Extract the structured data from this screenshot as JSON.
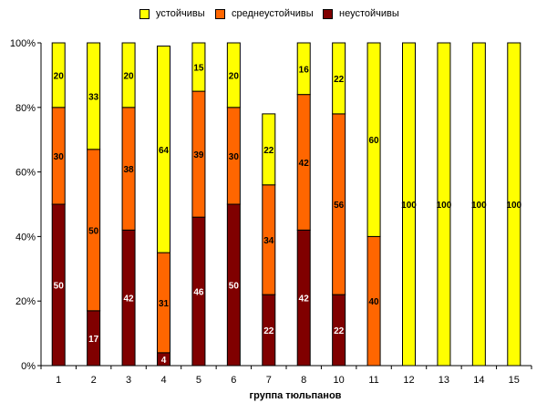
{
  "chart_data": {
    "type": "bar",
    "stacked": true,
    "normalized": true,
    "title": "",
    "xlabel": "группа тюльпанов",
    "ylabel": "",
    "ylim": [
      0,
      100
    ],
    "yticks": [
      "0%",
      "20%",
      "40%",
      "60%",
      "80%",
      "100%"
    ],
    "ytick_values": [
      0,
      20,
      40,
      60,
      80,
      100
    ],
    "categories": [
      "1",
      "2",
      "3",
      "4",
      "5",
      "6",
      "7",
      "8",
      "10",
      "11",
      "12",
      "13",
      "14",
      "15"
    ],
    "series": [
      {
        "name": "неустойчивы",
        "color": "#800000",
        "label_color": "#ffffff",
        "values": [
          50,
          17,
          42,
          4,
          46,
          50,
          22,
          42,
          22,
          0,
          0,
          0,
          0,
          0
        ]
      },
      {
        "name": "среднеустойчивы",
        "color": "#ff6600",
        "label_color": "#000000",
        "values": [
          30,
          50,
          38,
          31,
          39,
          30,
          34,
          42,
          56,
          40,
          0,
          0,
          0,
          0
        ]
      },
      {
        "name": "устойчивы",
        "color": "#ffff00",
        "label_color": "#000000",
        "values": [
          20,
          33,
          20,
          64,
          15,
          20,
          22,
          16,
          22,
          60,
          100,
          100,
          100,
          100
        ]
      }
    ],
    "legend_order": [
      2,
      1,
      0
    ],
    "legend_position": "top",
    "grid": false
  }
}
